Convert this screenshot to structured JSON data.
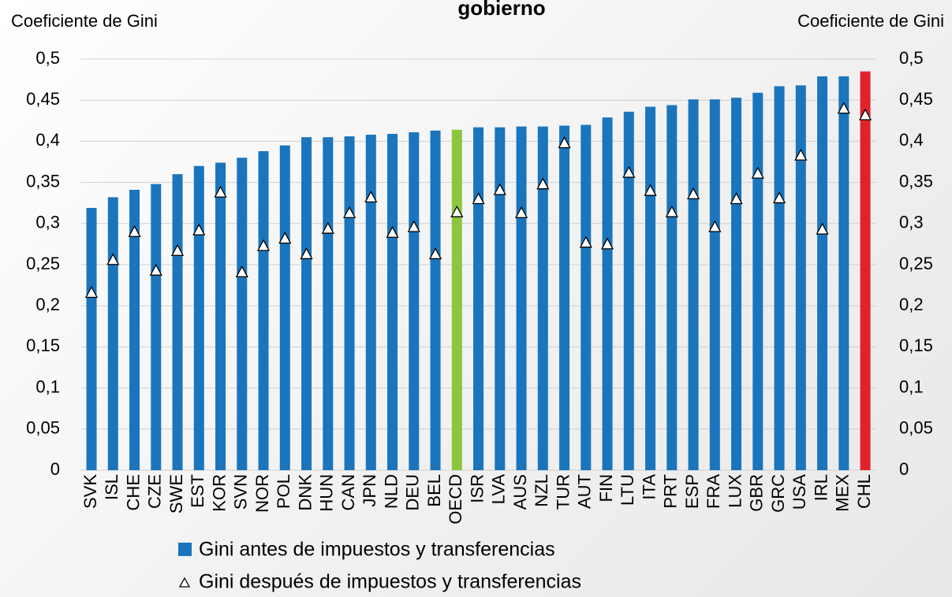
{
  "chart_data": {
    "type": "bar",
    "title": "gobierno",
    "ylabel": "Coeficiente de Gini",
    "y2label": "Coeficiente de Gini",
    "categories": [
      "SVK",
      "ISL",
      "CHE",
      "CZE",
      "SWE",
      "EST",
      "KOR",
      "SVN",
      "NOR",
      "POL",
      "DNK",
      "HUN",
      "CAN",
      "JPN",
      "NLD",
      "DEU",
      "BEL",
      "OECD",
      "ISR",
      "LVA",
      "AUS",
      "NZL",
      "TUR",
      "AUT",
      "FIN",
      "LTU",
      "ITA",
      "PRT",
      "ESP",
      "FRA",
      "LUX",
      "GBR",
      "GRC",
      "USA",
      "IRL",
      "MEX",
      "CHL"
    ],
    "series": [
      {
        "name": "Gini antes de impuestos y transferencias",
        "color": "#1a75bc",
        "colors": [
          "#1a75bc",
          "#1a75bc",
          "#1a75bc",
          "#1a75bc",
          "#1a75bc",
          "#1a75bc",
          "#1a75bc",
          "#1a75bc",
          "#1a75bc",
          "#1a75bc",
          "#1a75bc",
          "#1a75bc",
          "#1a75bc",
          "#1a75bc",
          "#1a75bc",
          "#1a75bc",
          "#1a75bc",
          "#8cc63f",
          "#1a75bc",
          "#1a75bc",
          "#1a75bc",
          "#1a75bc",
          "#1a75bc",
          "#1a75bc",
          "#1a75bc",
          "#1a75bc",
          "#1a75bc",
          "#1a75bc",
          "#1a75bc",
          "#1a75bc",
          "#1a75bc",
          "#1a75bc",
          "#1a75bc",
          "#1a75bc",
          "#1a75bc",
          "#1a75bc",
          "#e0232b"
        ],
        "values": [
          0.319,
          0.332,
          0.341,
          0.348,
          0.36,
          0.37,
          0.374,
          0.38,
          0.388,
          0.395,
          0.405,
          0.405,
          0.406,
          0.408,
          0.409,
          0.411,
          0.413,
          0.414,
          0.417,
          0.417,
          0.418,
          0.418,
          0.419,
          0.42,
          0.429,
          0.436,
          0.442,
          0.444,
          0.451,
          0.451,
          0.453,
          0.459,
          0.467,
          0.468,
          0.479,
          0.479,
          0.485
        ]
      },
      {
        "name": "Gini después de impuestos y transferencias",
        "color": "#ffffff",
        "marker": "triangle",
        "values": [
          0.216,
          0.256,
          0.29,
          0.243,
          0.267,
          0.292,
          0.338,
          0.241,
          0.273,
          0.282,
          0.263,
          0.294,
          0.313,
          0.332,
          0.289,
          0.296,
          0.263,
          0.314,
          0.33,
          0.341,
          0.313,
          0.348,
          0.398,
          0.277,
          0.275,
          0.362,
          0.34,
          0.314,
          0.336,
          0.296,
          0.33,
          0.361,
          0.331,
          0.383,
          0.293,
          0.44,
          0.432
        ]
      }
    ],
    "ylim": [
      0,
      0.5
    ],
    "yticks": [
      0,
      {
        "value": 0.05,
        "label": "0,05"
      },
      {
        "value": 0.1,
        "label": "0,1"
      },
      {
        "value": 0.15,
        "label": "0,15"
      },
      {
        "value": 0.2,
        "label": "0,2"
      },
      {
        "value": 0.25,
        "label": "0,25"
      },
      {
        "value": 0.3,
        "label": "0,3"
      },
      {
        "value": 0.35,
        "label": "0,35"
      },
      {
        "value": 0.4,
        "label": "0,4"
      },
      {
        "value": 0.45,
        "label": "0,45"
      },
      {
        "value": 0.5,
        "label": "0,5"
      }
    ],
    "y2lim": [
      0,
      0.5
    ],
    "y2ticks": [
      0,
      {
        "value": 0.05,
        "label": "0,05"
      },
      {
        "value": 0.1,
        "label": "0,1"
      },
      {
        "value": 0.15,
        "label": "0,15"
      },
      {
        "value": 0.2,
        "label": "0,2"
      },
      {
        "value": 0.25,
        "label": "0,25"
      },
      {
        "value": 0.3,
        "label": "0,3"
      },
      {
        "value": 0.35,
        "label": "0,35"
      },
      {
        "value": 0.4,
        "label": "0,4"
      },
      {
        "value": 0.45,
        "label": "0,45"
      },
      {
        "value": 0.5,
        "label": "0,5"
      }
    ],
    "grid": true,
    "legend": "bottom"
  }
}
